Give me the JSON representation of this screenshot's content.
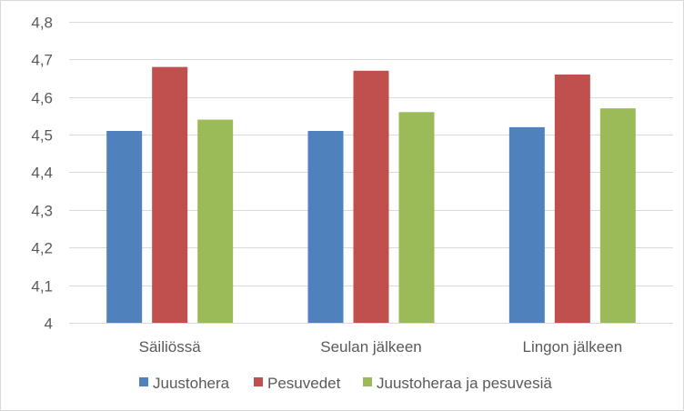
{
  "chart_data": {
    "type": "bar",
    "categories": [
      "Säiliössä",
      "Seulan jälkeen",
      "Lingon jälkeen"
    ],
    "series": [
      {
        "name": "Juustohera",
        "color": "#4f81bd",
        "values": [
          4.51,
          4.51,
          4.52
        ]
      },
      {
        "name": "Pesuvedet",
        "color": "#c0504d",
        "values": [
          4.68,
          4.67,
          4.66
        ]
      },
      {
        "name": "Juustoheraa ja pesuvesiä",
        "color": "#9bbb59",
        "values": [
          4.54,
          4.56,
          4.57
        ]
      }
    ],
    "ylim": [
      4,
      4.8
    ],
    "yticks": [
      "4",
      "4,1",
      "4,2",
      "4,3",
      "4,4",
      "4,5",
      "4,6",
      "4,7",
      "4,8"
    ],
    "ytick_values": [
      4.0,
      4.1,
      4.2,
      4.3,
      4.4,
      4.5,
      4.6,
      4.7,
      4.8
    ],
    "grid": true,
    "legend_position": "bottom",
    "gridline_color": "#d9d9d9"
  }
}
